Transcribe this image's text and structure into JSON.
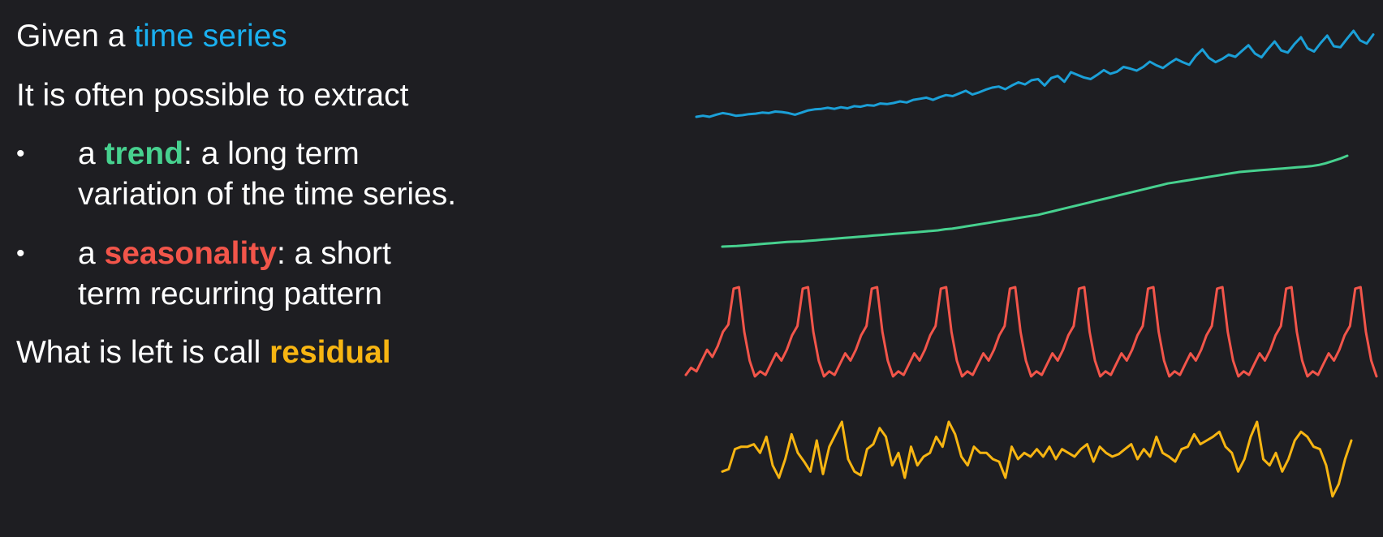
{
  "slide": {
    "line1": {
      "prefix": "Given a ",
      "highlight": "time series",
      "highlight_color": "#1ab0f0"
    },
    "line2": "It is often possible to extract",
    "bullets": [
      {
        "symbol": "•",
        "prefix": "a ",
        "highlight": "trend",
        "highlight_color": "#47d18f",
        "suffix": ": a long term",
        "line2": "variation of the time series."
      },
      {
        "symbol": "•",
        "prefix": "a ",
        "highlight": "seasonality",
        "highlight_color": "#f2554a",
        "suffix": ": a short",
        "line2": "term recurring pattern"
      }
    ],
    "line_last": {
      "prefix": "What is left is call ",
      "highlight": "residual",
      "highlight_color": "#f7b512"
    }
  },
  "chart_data": [
    {
      "type": "line",
      "name_hint": "observed",
      "color": "#1ba0d8",
      "y": [
        1,
        3,
        1,
        5,
        8,
        6,
        3,
        4,
        6,
        7,
        9,
        8,
        11,
        10,
        8,
        5,
        9,
        13,
        15,
        16,
        18,
        16,
        19,
        17,
        21,
        20,
        23,
        22,
        26,
        25,
        27,
        30,
        28,
        33,
        35,
        37,
        33,
        38,
        42,
        40,
        45,
        50,
        43,
        47,
        52,
        56,
        58,
        53,
        60,
        66,
        62,
        70,
        72,
        60,
        74,
        78,
        67,
        85,
        80,
        75,
        72,
        80,
        89,
        82,
        86,
        95,
        92,
        88,
        95,
        105,
        98,
        93,
        102,
        110,
        104,
        99,
        116,
        128,
        112,
        104,
        110,
        118,
        114,
        125,
        136,
        120,
        113,
        129,
        143,
        126,
        122,
        138,
        151,
        130,
        124,
        140,
        154,
        134,
        132,
        148,
        163,
        145,
        139,
        156
      ]
    },
    {
      "type": "line",
      "name_hint": "trend",
      "color": "#47d18f",
      "y": [
        0,
        0.5,
        1,
        2,
        3,
        4,
        5,
        6,
        7,
        8,
        8.5,
        9,
        10,
        11,
        12,
        13,
        14,
        15,
        16,
        17,
        18,
        19,
        20,
        21,
        22,
        23,
        24,
        25,
        26,
        27,
        28,
        30,
        31,
        33,
        35,
        37,
        39,
        41,
        43,
        45,
        47,
        49,
        51,
        53,
        55,
        58,
        61,
        64,
        67,
        70,
        73,
        76,
        79,
        82,
        85,
        88,
        91,
        94,
        97,
        100,
        103,
        106,
        109,
        111,
        113,
        115,
        117,
        119,
        121,
        123,
        125,
        127,
        129,
        130,
        131,
        132,
        133,
        134,
        135,
        136,
        137,
        138,
        139,
        141,
        144,
        148,
        152,
        157
      ]
    },
    {
      "type": "line",
      "name_hint": "seasonal",
      "color": "#f2554a",
      "y": [
        -40,
        -30,
        -35,
        -20,
        -5,
        -15,
        0,
        20,
        30,
        80,
        82,
        20,
        -20,
        -42,
        -35,
        -40,
        -25,
        -10,
        -20,
        -5,
        15,
        28,
        80,
        82,
        20,
        -20,
        -42,
        -35,
        -40,
        -25,
        -10,
        -20,
        -5,
        15,
        28,
        80,
        82,
        20,
        -20,
        -42,
        -35,
        -40,
        -25,
        -10,
        -20,
        -5,
        15,
        28,
        80,
        82,
        20,
        -20,
        -42,
        -35,
        -40,
        -25,
        -10,
        -20,
        -5,
        15,
        28,
        80,
        82,
        20,
        -20,
        -42,
        -35,
        -40,
        -25,
        -10,
        -20,
        -5,
        15,
        28,
        80,
        82,
        20,
        -20,
        -42,
        -35,
        -40,
        -25,
        -10,
        -20,
        -5,
        15,
        28,
        80,
        82,
        20,
        -20,
        -42,
        -35,
        -40,
        -25,
        -10,
        -20,
        -5,
        15,
        28,
        80,
        82,
        20,
        -20,
        -42,
        -35,
        -40,
        -25,
        -10,
        -20,
        -5,
        15,
        28,
        80,
        82,
        20,
        -20,
        -42,
        -35,
        -40,
        -25,
        -10,
        -20,
        -5,
        15,
        28,
        80,
        82,
        20,
        -20,
        -42
      ]
    },
    {
      "type": "line",
      "name_hint": "residual",
      "color": "#f7b512",
      "y": [
        0,
        2,
        18,
        20,
        20,
        22,
        15,
        28,
        5,
        -5,
        10,
        30,
        15,
        8,
        0,
        25,
        -2,
        20,
        30,
        40,
        10,
        0,
        -3,
        18,
        22,
        35,
        28,
        5,
        15,
        -5,
        20,
        5,
        12,
        15,
        28,
        20,
        40,
        30,
        12,
        5,
        20,
        15,
        15,
        10,
        8,
        -5,
        20,
        10,
        15,
        12,
        18,
        12,
        20,
        10,
        18,
        15,
        12,
        18,
        22,
        8,
        20,
        15,
        12,
        14,
        18,
        22,
        10,
        18,
        12,
        28,
        15,
        12,
        8,
        18,
        20,
        30,
        22,
        25,
        28,
        32,
        20,
        15,
        0,
        10,
        28,
        40,
        10,
        5,
        15,
        0,
        10,
        25,
        32,
        28,
        20,
        18,
        5,
        -20,
        -10,
        10,
        25
      ]
    }
  ]
}
